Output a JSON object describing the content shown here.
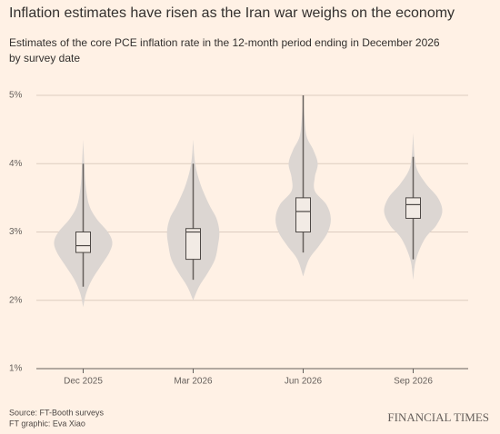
{
  "chart_data": {
    "type": "violin",
    "title": "Inflation estimates have risen as the Iran war weighs on the economy",
    "subtitle": "Estimates of the core PCE inflation rate in the 12-month period ending in December 2026 by survey date",
    "categories": [
      "Dec 2025",
      "Mar 2026",
      "Jun 2026",
      "Sep 2026"
    ],
    "low": [
      2.2,
      2.3,
      2.7,
      2.6
    ],
    "q1": [
      2.7,
      2.6,
      3.0,
      3.2
    ],
    "median": [
      2.8,
      3.0,
      3.3,
      3.4
    ],
    "q3": [
      3.0,
      3.05,
      3.5,
      3.5
    ],
    "high": [
      4.0,
      4.0,
      5.0,
      4.1
    ],
    "violins": [
      {
        "y": [
          1.9,
          2.1,
          2.3,
          2.5,
          2.7,
          2.85,
          3.0,
          3.2,
          3.4,
          3.7,
          4.0,
          4.35
        ],
        "density": [
          0,
          0.1,
          0.3,
          0.6,
          0.9,
          1.0,
          0.85,
          0.45,
          0.2,
          0.08,
          0.04,
          0
        ]
      },
      {
        "y": [
          2.0,
          2.2,
          2.4,
          2.6,
          2.8,
          3.0,
          3.2,
          3.4,
          3.7,
          4.0,
          4.35
        ],
        "density": [
          0,
          0.2,
          0.5,
          0.75,
          0.85,
          0.9,
          0.8,
          0.55,
          0.25,
          0.07,
          0
        ]
      },
      {
        "y": [
          2.35,
          2.6,
          2.8,
          3.0,
          3.2,
          3.4,
          3.6,
          3.8,
          4.0,
          4.2,
          4.4,
          4.7,
          5.0
        ],
        "density": [
          0,
          0.2,
          0.55,
          0.85,
          0.95,
          0.8,
          0.4,
          0.4,
          0.5,
          0.35,
          0.12,
          0.04,
          0
        ]
      },
      {
        "y": [
          2.3,
          2.6,
          2.9,
          3.1,
          3.3,
          3.5,
          3.7,
          3.9,
          4.1,
          4.45
        ],
        "density": [
          0,
          0.1,
          0.4,
          0.8,
          1.0,
          0.85,
          0.45,
          0.15,
          0.05,
          0
        ]
      }
    ],
    "violin_color": "#dcd6d2",
    "box_color": "#f2ebe5",
    "ylim": [
      1,
      5
    ],
    "yticks": [
      {
        "value": 1,
        "label": "1%"
      },
      {
        "value": 2,
        "label": "2%"
      },
      {
        "value": 3,
        "label": "3%"
      },
      {
        "value": 4,
        "label": "4%"
      },
      {
        "value": 5,
        "label": "5%"
      }
    ],
    "grid": true,
    "source": "Source: FT-Booth surveys",
    "credit": "FT graphic: Eva Xiao",
    "logo": "FINANCIAL TIMES"
  }
}
